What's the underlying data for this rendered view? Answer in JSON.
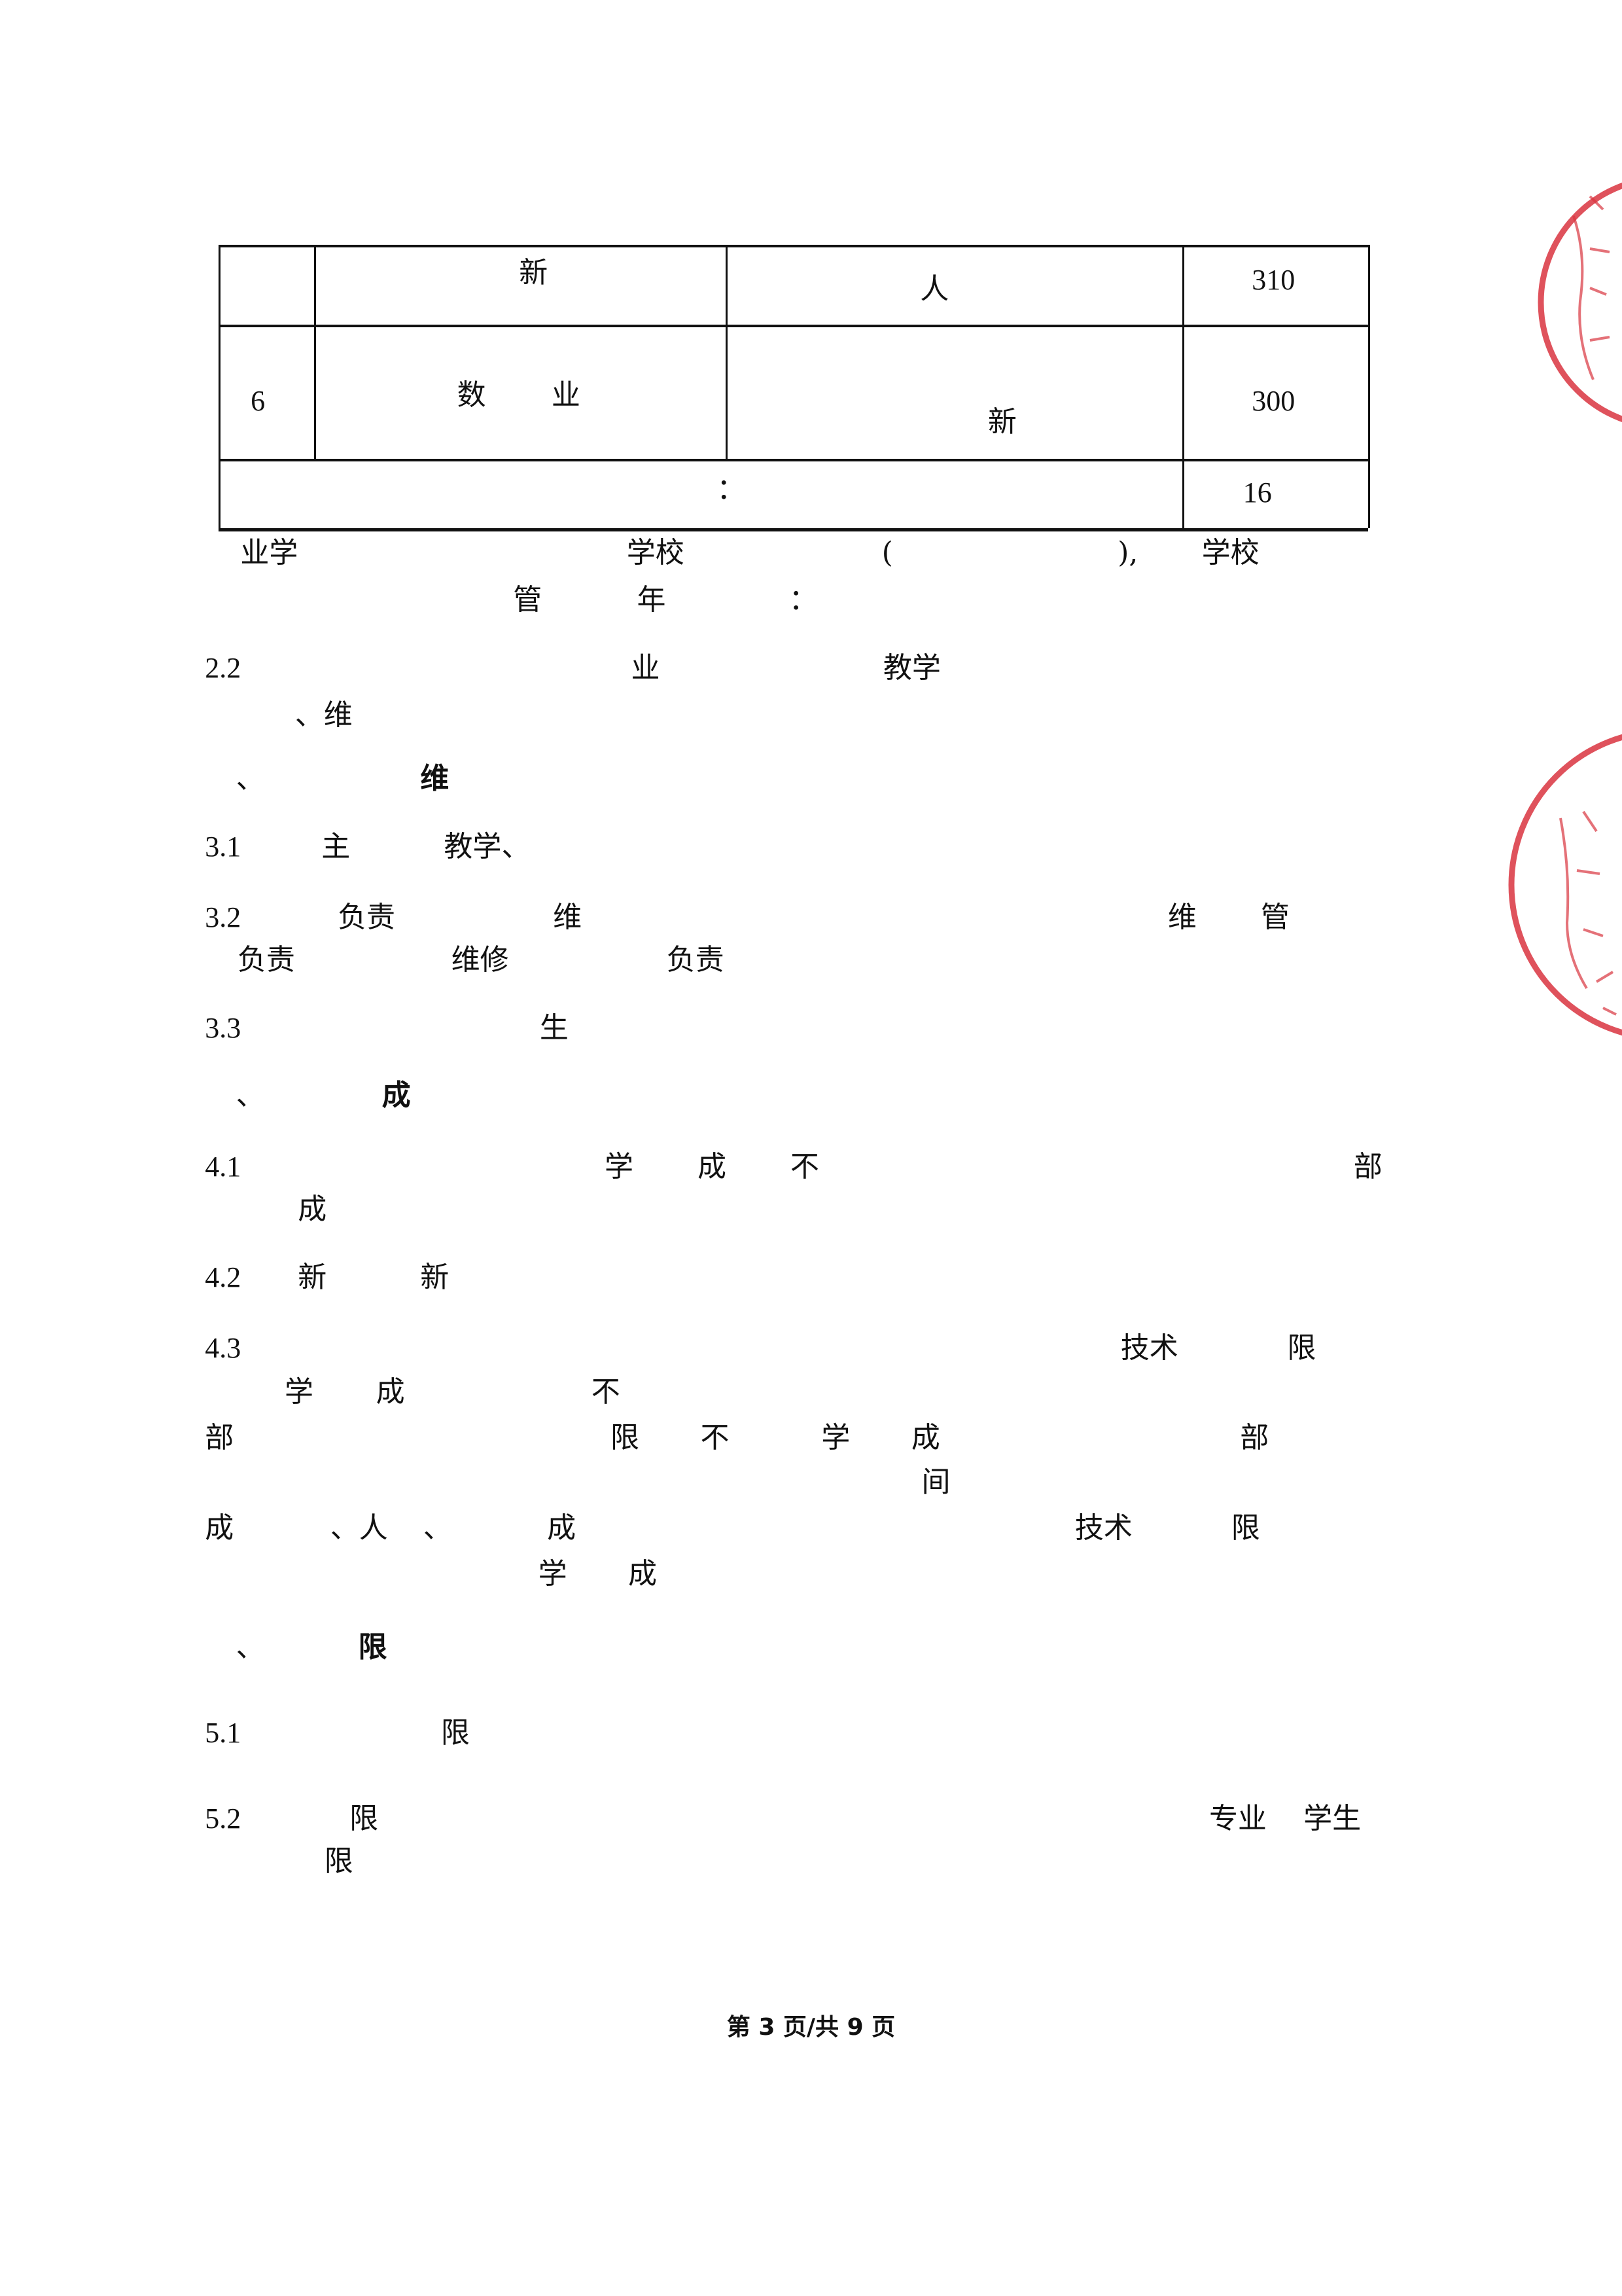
{
  "table": {
    "rows": [
      {
        "cells": [
          "",
          "新",
          "人",
          "310"
        ]
      },
      {
        "cells": [
          "6",
          "数",
          "业",
          "新",
          "300"
        ]
      },
      {
        "cells": [
          "：",
          "16"
        ]
      }
    ]
  },
  "body_lines": [
    [
      "业学",
      "学校",
      "(",
      "),",
      "学校"
    ],
    [
      "管",
      "年",
      "："
    ],
    [
      "2.2",
      "业",
      "教学"
    ],
    [
      "、维"
    ],
    [
      "、",
      "维"
    ],
    [
      "3.1",
      "主",
      "教学、"
    ],
    [
      "3.2",
      "负责",
      "维",
      "维",
      "管"
    ],
    [
      "负责",
      "维修",
      "负责"
    ],
    [
      "3.3",
      "生"
    ],
    [
      "、",
      "成"
    ],
    [
      "4.1",
      "学",
      "成",
      "不",
      "部"
    ],
    [
      "成"
    ],
    [
      "4.2",
      "新",
      "新"
    ],
    [
      "4.3",
      "技术",
      "限"
    ],
    [
      "学",
      "成",
      "不"
    ],
    [
      "部",
      "限",
      "不",
      "学",
      "成",
      "部"
    ],
    [
      "间"
    ],
    [
      "成",
      "、人",
      "、",
      "成",
      "技术",
      "限"
    ],
    [
      "学",
      "成"
    ],
    [
      "、",
      "限"
    ],
    [
      "5.1",
      "限"
    ],
    [
      "5.2",
      "限",
      "专业",
      "学生"
    ],
    [
      "限"
    ]
  ],
  "footer": "第 3 页/共 9 页",
  "stamps": {
    "color": "#d9343f",
    "count": 2
  }
}
